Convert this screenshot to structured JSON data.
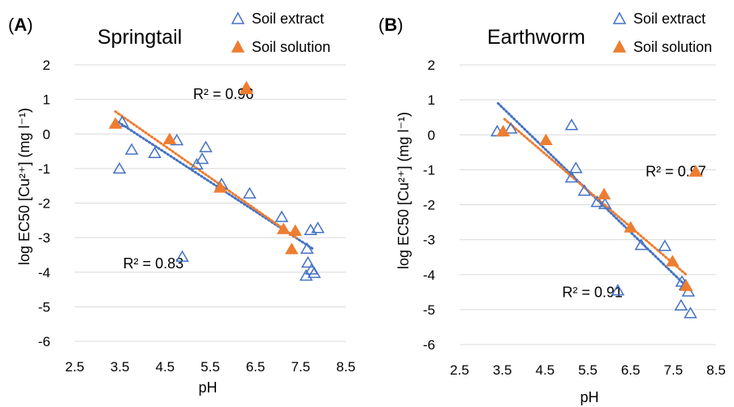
{
  "chart_data": [
    {
      "type": "scatter",
      "panel_label": "A",
      "title": "Springtail",
      "xlabel": "pH",
      "ylabel": "log EC50 [Cu²⁺] (mg l⁻¹)",
      "xlim": [
        2.5,
        8.5
      ],
      "ylim": [
        -6,
        2
      ],
      "xticks": [
        "2.5",
        "3.5",
        "4.5",
        "5.5",
        "6.5",
        "7.5",
        "8.5"
      ],
      "yticks": [
        "-6",
        "-5",
        "-4",
        "-3",
        "-2",
        "-1",
        "0",
        "1",
        "2"
      ],
      "grid": "horizontal",
      "legend_position": "top-right",
      "series": [
        {
          "name": "Soil extract",
          "marker": "open-triangle",
          "color": "#4472c4",
          "points": [
            {
              "x": 3.49,
              "y": -1.0
            },
            {
              "x": 3.55,
              "y": 0.35
            },
            {
              "x": 3.76,
              "y": -0.45
            },
            {
              "x": 4.27,
              "y": -0.55
            },
            {
              "x": 4.76,
              "y": -0.18
            },
            {
              "x": 5.2,
              "y": -0.88
            },
            {
              "x": 5.32,
              "y": -0.72
            },
            {
              "x": 5.4,
              "y": -0.38
            },
            {
              "x": 5.75,
              "y": -1.45
            },
            {
              "x": 6.37,
              "y": -1.72
            },
            {
              "x": 7.08,
              "y": -2.4
            },
            {
              "x": 7.64,
              "y": -3.32
            },
            {
              "x": 7.72,
              "y": -2.78
            },
            {
              "x": 7.88,
              "y": -2.72
            },
            {
              "x": 7.66,
              "y": -3.72
            },
            {
              "x": 7.74,
              "y": -3.92
            },
            {
              "x": 7.8,
              "y": -4.02
            },
            {
              "x": 7.62,
              "y": -4.1
            }
          ]
        },
        {
          "name": "Soil solution",
          "marker": "filled-triangle",
          "color": "#ed7d31",
          "points": [
            {
              "x": 3.4,
              "y": 0.3
            },
            {
              "x": 4.6,
              "y": -0.15
            },
            {
              "x": 5.72,
              "y": -1.55
            },
            {
              "x": 6.3,
              "y": 1.35
            },
            {
              "x": 7.12,
              "y": -2.75
            },
            {
              "x": 7.38,
              "y": -2.8
            },
            {
              "x": 7.3,
              "y": -3.33
            }
          ]
        }
      ],
      "trendlines": [
        {
          "series": "Soil extract",
          "style": "dotted",
          "x": [
            3.4,
            7.8
          ],
          "y": [
            0.4,
            -3.35
          ]
        },
        {
          "series": "Soil solution",
          "style": "dotted",
          "x": [
            3.4,
            7.4
          ],
          "y": [
            0.65,
            -3.0
          ]
        }
      ],
      "annotations": [
        {
          "text": "R² = 0.96",
          "x": 5.12,
          "y": 1.15,
          "marker_series": "Soil solution",
          "marker_x": 6.3,
          "marker_y": 1.3
        },
        {
          "text": "R² = 0.83",
          "x": 3.57,
          "y": -3.75,
          "marker_series": "Soil extract",
          "marker_x": 4.88,
          "marker_y": -3.55
        }
      ]
    },
    {
      "type": "scatter",
      "panel_label": "B",
      "title": "Earthworm",
      "xlabel": "pH",
      "ylabel": "log EC50 [Cu²⁺] (mg l⁻¹)",
      "xlim": [
        2.5,
        8.5
      ],
      "ylim": [
        -6,
        2
      ],
      "xticks": [
        "2.5",
        "3.5",
        "4.5",
        "5.5",
        "6.5",
        "7.5",
        "8.5"
      ],
      "yticks": [
        "-6",
        "-5",
        "-4",
        "-3",
        "-2",
        "-1",
        "0",
        "1",
        "2"
      ],
      "grid": "horizontal",
      "legend_position": "top-right",
      "series": [
        {
          "name": "Soil extract",
          "marker": "open-triangle",
          "color": "#4472c4",
          "points": [
            {
              "x": 3.38,
              "y": 0.1
            },
            {
              "x": 3.7,
              "y": 0.18
            },
            {
              "x": 5.12,
              "y": 0.28
            },
            {
              "x": 5.12,
              "y": -1.22
            },
            {
              "x": 5.22,
              "y": -0.95
            },
            {
              "x": 5.42,
              "y": -1.6
            },
            {
              "x": 5.72,
              "y": -1.92
            },
            {
              "x": 5.9,
              "y": -1.98
            },
            {
              "x": 6.75,
              "y": -3.15
            },
            {
              "x": 7.3,
              "y": -3.18
            },
            {
              "x": 7.7,
              "y": -4.2
            },
            {
              "x": 7.78,
              "y": -4.3
            },
            {
              "x": 7.85,
              "y": -4.48
            },
            {
              "x": 7.68,
              "y": -4.88
            },
            {
              "x": 7.9,
              "y": -5.1
            }
          ]
        },
        {
          "name": "Soil solution",
          "marker": "filled-triangle",
          "color": "#ed7d31",
          "points": [
            {
              "x": 3.52,
              "y": 0.1
            },
            {
              "x": 4.52,
              "y": -0.15
            },
            {
              "x": 5.88,
              "y": -1.7
            },
            {
              "x": 6.5,
              "y": -2.65
            },
            {
              "x": 7.48,
              "y": -3.62
            },
            {
              "x": 7.8,
              "y": -4.32
            },
            {
              "x": 8.02,
              "y": -1.05
            }
          ]
        }
      ],
      "trendlines": [
        {
          "series": "Soil extract",
          "style": "dotted",
          "x": [
            3.4,
            7.9
          ],
          "y": [
            0.9,
            -4.45
          ]
        },
        {
          "series": "Soil solution",
          "style": "dotted",
          "x": [
            3.55,
            7.8
          ],
          "y": [
            0.45,
            -4.0
          ]
        }
      ],
      "annotations": [
        {
          "text": "R² = 0.97",
          "x": 6.85,
          "y": -1.05,
          "marker_series": "Soil solution",
          "marker_x": 8.02,
          "marker_y": -1.05
        },
        {
          "text": "R² = 0.91",
          "x": 4.9,
          "y": -4.5,
          "marker_series": "Soil extract",
          "marker_x": 6.2,
          "marker_y": -4.45
        }
      ]
    }
  ]
}
